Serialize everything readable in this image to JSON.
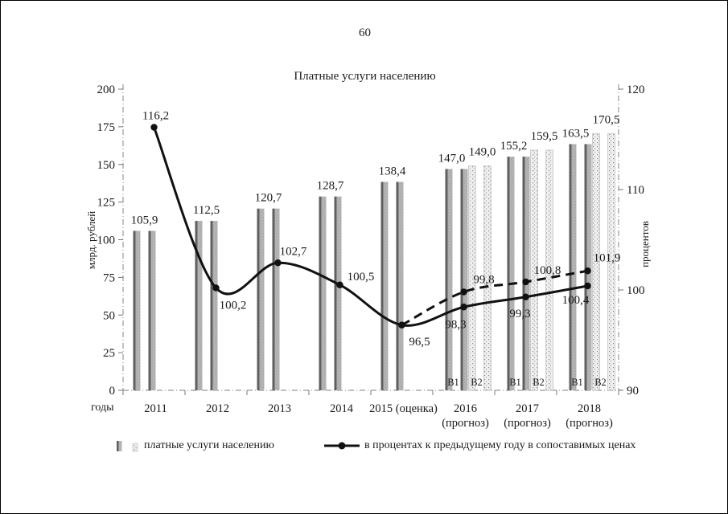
{
  "page": {
    "number": "60"
  },
  "chart_data": {
    "type": "bar+line",
    "title": "Платные услуги населению",
    "bar_series_name": "платные услуги населению",
    "line_series_name": "в процентах к предыдущему году в сопоставимых ценах",
    "left_axis": {
      "label": "млрд. рублей",
      "min": 0,
      "max": 200,
      "step": 25
    },
    "right_axis": {
      "label": "процентов",
      "min": 90,
      "max": 120,
      "step": 10
    },
    "x_axis_label": "годы",
    "legend_position": "bottom",
    "grid": "off",
    "variant_labels": {
      "b1": "В1",
      "b2": "В2"
    },
    "colors": {
      "bar_dark": "#5f5f5f",
      "bar_light": "#b4b4b4",
      "bar_light_dot": "#9e9e9e",
      "bar_b2_fill": "#eeeeee",
      "bar_b2_dot": "#8f8f8f",
      "bar_b2_edge": "#bdbdbd",
      "line": "#111111",
      "axis": "#999999",
      "tick": "#777777",
      "text": "#1a1a1a"
    },
    "years": [
      {
        "x": [
          "2011"
        ],
        "bar_b1": 105.9,
        "bar_b1_label": "105,9",
        "bar_b2": null,
        "bar_b2_label": null,
        "pct_b1": 116.2,
        "pct_b1_label": "116,2",
        "pct_b1_dx": 2,
        "pct_b1_dy": -10,
        "pct_b2": null,
        "pct_b2_label": null,
        "pct_b2_dx": 0,
        "pct_b2_dy": 0
      },
      {
        "x": [
          "2012"
        ],
        "bar_b1": 112.5,
        "bar_b1_label": "112,5",
        "bar_b2": null,
        "bar_b2_label": null,
        "pct_b1": 100.2,
        "pct_b1_label": "100,2",
        "pct_b1_dx": 21,
        "pct_b1_dy": 26,
        "pct_b2": null,
        "pct_b2_label": null,
        "pct_b2_dx": 0,
        "pct_b2_dy": 0
      },
      {
        "x": [
          "2013"
        ],
        "bar_b1": 120.7,
        "bar_b1_label": "120,7",
        "bar_b2": null,
        "bar_b2_label": null,
        "pct_b1": 102.7,
        "pct_b1_label": "102,7",
        "pct_b1_dx": 19,
        "pct_b1_dy": -10,
        "pct_b2": null,
        "pct_b2_label": null,
        "pct_b2_dx": 0,
        "pct_b2_dy": 0
      },
      {
        "x": [
          "2014"
        ],
        "bar_b1": 128.7,
        "bar_b1_label": "128,7",
        "bar_b2": null,
        "bar_b2_label": null,
        "pct_b1": 100.5,
        "pct_b1_label": "100,5",
        "pct_b1_dx": 26,
        "pct_b1_dy": -6,
        "pct_b2": null,
        "pct_b2_label": null,
        "pct_b2_dx": 0,
        "pct_b2_dy": 0
      },
      {
        "x": [
          "2015 (оценка)"
        ],
        "bar_b1": 138.4,
        "bar_b1_label": "138,4",
        "bar_b2": null,
        "bar_b2_label": null,
        "pct_b1": 96.5,
        "pct_b1_label": "96,5",
        "pct_b1_dx": 22,
        "pct_b1_dy": 25,
        "pct_b2": 96.5,
        "pct_b2_label": null,
        "pct_b2_dx": 0,
        "pct_b2_dy": 0
      },
      {
        "x": [
          "2016",
          "(прогноз)"
        ],
        "bar_b1": 147.0,
        "bar_b1_label": "147,0",
        "bar_b2": 149.0,
        "bar_b2_label": "149,0",
        "pct_b1": 98.3,
        "pct_b1_label": "98,3",
        "pct_b1_dx": -10,
        "pct_b1_dy": 26,
        "pct_b2": 99.8,
        "pct_b2_label": "99,8",
        "pct_b2_dx": 25,
        "pct_b2_dy": -11
      },
      {
        "x": [
          "2017",
          "(прогноз)"
        ],
        "bar_b1": 155.2,
        "bar_b1_label": "155,2",
        "bar_b2": 159.5,
        "bar_b2_label": "159,5",
        "pct_b1": 99.3,
        "pct_b1_label": "99,3",
        "pct_b1_dx": -7,
        "pct_b1_dy": 25,
        "pct_b2": 100.8,
        "pct_b2_label": "100,8",
        "pct_b2_dx": 27,
        "pct_b2_dy": -10
      },
      {
        "x": [
          "2018",
          "(прогноз)"
        ],
        "bar_b1": 163.5,
        "bar_b1_label": "163,5",
        "bar_b2": 170.5,
        "bar_b2_label": "170,5",
        "pct_b1": 100.4,
        "pct_b1_label": "100,4",
        "pct_b1_dx": -15,
        "pct_b1_dy": 22,
        "pct_b2": 101.9,
        "pct_b2_label": "101,9",
        "pct_b2_dx": 24,
        "pct_b2_dy": -12
      }
    ]
  }
}
